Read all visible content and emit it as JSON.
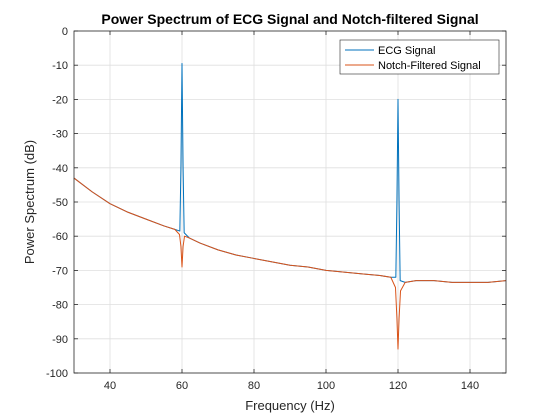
{
  "chart_data": {
    "type": "line",
    "title": "Power Spectrum of ECG Signal and Notch-filtered Signal",
    "xlabel": "Frequency (Hz)",
    "ylabel": "Power Spectrum (dB)",
    "xlim": [
      30,
      150
    ],
    "ylim": [
      -100,
      0
    ],
    "xticks": [
      40,
      60,
      80,
      100,
      120,
      140
    ],
    "yticks": [
      0,
      -10,
      -20,
      -30,
      -40,
      -50,
      -60,
      -70,
      -80,
      -90,
      -100
    ],
    "grid": true,
    "legend_position": "top-right",
    "series": [
      {
        "name": "ECG Signal",
        "color": "#0072BD",
        "x": [
          30,
          35,
          40,
          45,
          50,
          55,
          58,
          59.4,
          59.7,
          60,
          60.3,
          60.6,
          62,
          65,
          70,
          75,
          80,
          85,
          90,
          95,
          100,
          105,
          110,
          115,
          118,
          119.4,
          119.7,
          120,
          120.3,
          120.6,
          122,
          125,
          130,
          135,
          140,
          145,
          150
        ],
        "y": [
          -43,
          -47,
          -50.5,
          -53,
          -55,
          -57,
          -58,
          -58.5,
          -40,
          -9.5,
          -40,
          -59,
          -60.5,
          -62,
          -64,
          -65.5,
          -66.5,
          -67.5,
          -68.5,
          -69,
          -70,
          -70.5,
          -71,
          -71.5,
          -72,
          -72,
          -50,
          -20,
          -50,
          -73,
          -73.5,
          -73,
          -73,
          -73.5,
          -73.5,
          -73.5,
          -73
        ]
      },
      {
        "name": "Notch-Filtered Signal",
        "color": "#D95319",
        "x": [
          30,
          35,
          40,
          45,
          50,
          55,
          58,
          59.3,
          59.7,
          60,
          60.3,
          60.7,
          62,
          65,
          70,
          75,
          80,
          85,
          90,
          95,
          100,
          105,
          110,
          115,
          118,
          119.3,
          119.7,
          120,
          120.3,
          120.7,
          122,
          125,
          130,
          135,
          140,
          145,
          150
        ],
        "y": [
          -43,
          -47,
          -50.5,
          -53,
          -55,
          -57,
          -58,
          -59.5,
          -63,
          -69,
          -63,
          -60,
          -60.5,
          -62,
          -64,
          -65.5,
          -66.5,
          -67.5,
          -68.5,
          -69,
          -70,
          -70.5,
          -71,
          -71.5,
          -72,
          -75,
          -84,
          -93,
          -84,
          -76,
          -73.5,
          -73,
          -73,
          -73.5,
          -73.5,
          -73.5,
          -73
        ]
      }
    ]
  }
}
